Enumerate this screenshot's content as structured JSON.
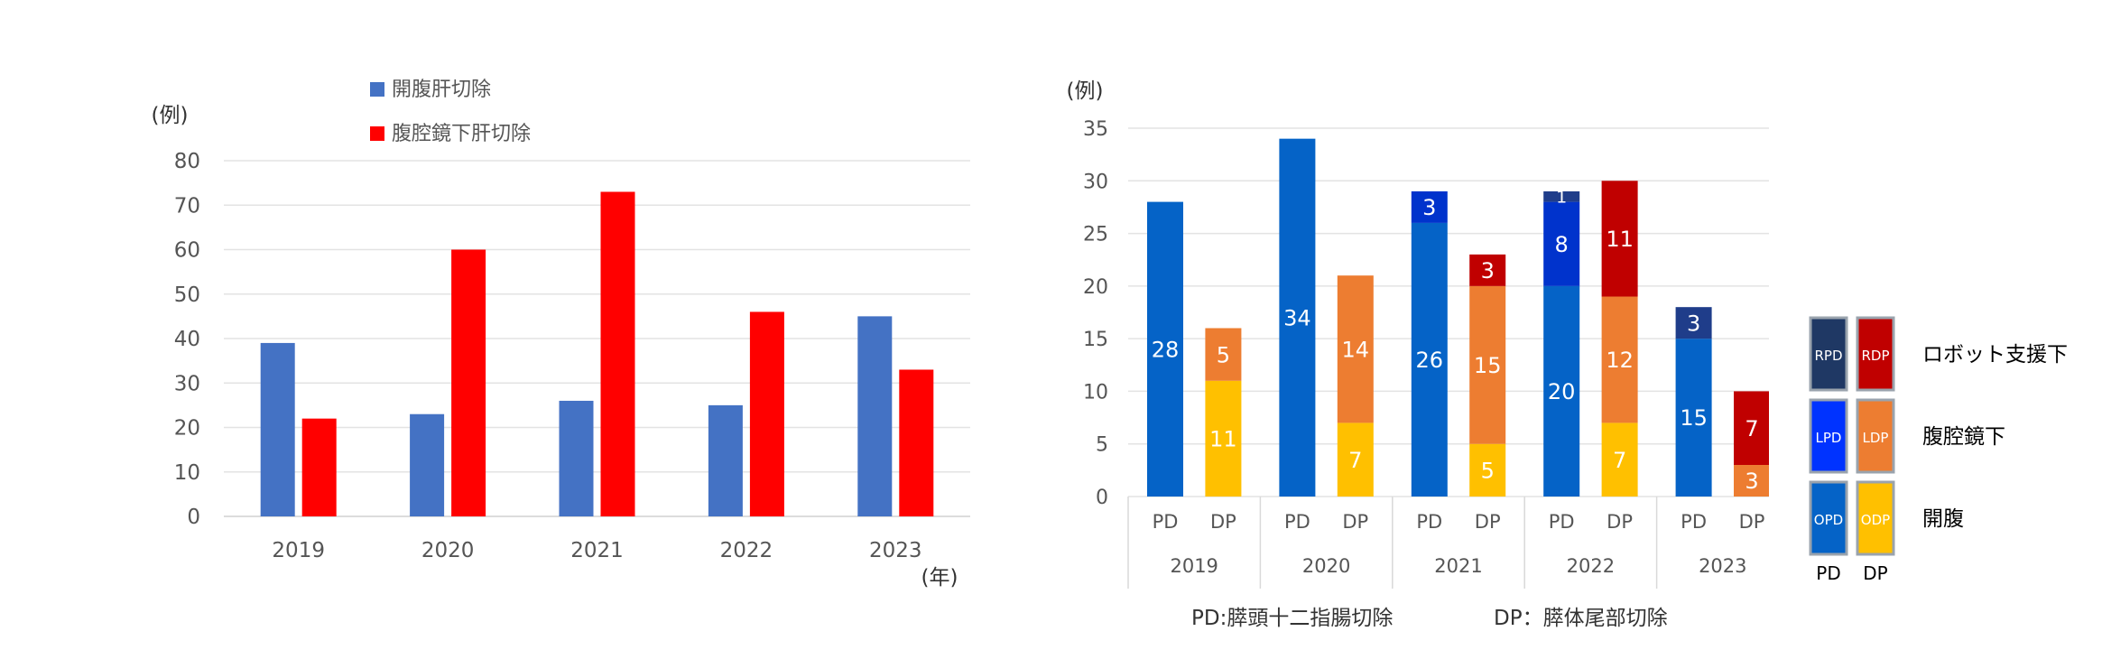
{
  "chart_data": [
    {
      "type": "bar",
      "title": "",
      "xlabel": "(年)",
      "ylabel": "(例)",
      "ylim": [
        0,
        80
      ],
      "yticks": [
        0,
        10,
        20,
        30,
        40,
        50,
        60,
        70,
        80
      ],
      "categories": [
        "2019",
        "2020",
        "2021",
        "2022",
        "2023"
      ],
      "series": [
        {
          "name": "開腹肝切除",
          "color": "#4472c4",
          "values": [
            39,
            23,
            26,
            25,
            45
          ]
        },
        {
          "name": "腹腔鏡下肝切除",
          "color": "#ff0000",
          "values": [
            22,
            60,
            73,
            46,
            33
          ]
        }
      ],
      "grid": true,
      "legend": "top"
    },
    {
      "type": "bar",
      "stacked": true,
      "title": "",
      "ylabel": "(例)",
      "ylim": [
        0,
        35
      ],
      "yticks": [
        0,
        5,
        10,
        15,
        20,
        25,
        30,
        35
      ],
      "categories": [
        "2019",
        "2020",
        "2021",
        "2022",
        "2023"
      ],
      "subcategories": [
        "PD",
        "DP"
      ],
      "footnote_pd": "PD:膵頭十二指腸切除",
      "footnote_dp": "DP：膵体尾部切除",
      "stack_layers": [
        "開腹",
        "腹腔鏡下",
        "ロボット支援下"
      ],
      "bars": [
        {
          "year": "2019",
          "type": "PD",
          "segments": [
            {
              "layer": "開腹",
              "value": 28,
              "color": "#0563c7"
            }
          ]
        },
        {
          "year": "2019",
          "type": "DP",
          "segments": [
            {
              "layer": "開腹",
              "value": 11,
              "color": "#ffc000"
            },
            {
              "layer": "腹腔鏡下",
              "value": 5,
              "color": "#ed7d31"
            }
          ]
        },
        {
          "year": "2020",
          "type": "PD",
          "segments": [
            {
              "layer": "開腹",
              "value": 34,
              "color": "#0563c7"
            }
          ]
        },
        {
          "year": "2020",
          "type": "DP",
          "segments": [
            {
              "layer": "開腹",
              "value": 7,
              "color": "#ffc000"
            },
            {
              "layer": "腹腔鏡下",
              "value": 14,
              "color": "#ed7d31"
            }
          ]
        },
        {
          "year": "2021",
          "type": "PD",
          "segments": [
            {
              "layer": "開腹",
              "value": 26,
              "color": "#0563c7"
            },
            {
              "layer": "腹腔鏡下",
              "value": 3,
              "color": "#0033cc"
            }
          ]
        },
        {
          "year": "2021",
          "type": "DP",
          "segments": [
            {
              "layer": "開腹",
              "value": 5,
              "color": "#ffc000"
            },
            {
              "layer": "腹腔鏡下",
              "value": 15,
              "color": "#ed7d31"
            },
            {
              "layer": "ロボット支援下",
              "value": 3,
              "color": "#c00000"
            }
          ]
        },
        {
          "year": "2022",
          "type": "PD",
          "segments": [
            {
              "layer": "開腹",
              "value": 20,
              "color": "#0563c7"
            },
            {
              "layer": "腹腔鏡下",
              "value": 8,
              "color": "#0033cc"
            },
            {
              "layer": "ロボット支援下",
              "value": 1,
              "color": "#1f3d8a"
            }
          ]
        },
        {
          "year": "2022",
          "type": "DP",
          "segments": [
            {
              "layer": "開腹",
              "value": 7,
              "color": "#ffc000"
            },
            {
              "layer": "腹腔鏡下",
              "value": 12,
              "color": "#ed7d31"
            },
            {
              "layer": "ロボット支援下",
              "value": 11,
              "color": "#c00000"
            }
          ]
        },
        {
          "year": "2023",
          "type": "PD",
          "segments": [
            {
              "layer": "開腹",
              "value": 15,
              "color": "#0563c7"
            },
            {
              "layer": "ロボット支援下",
              "value": 3,
              "color": "#1f3d8a"
            }
          ]
        },
        {
          "year": "2023",
          "type": "DP",
          "segments": [
            {
              "layer": "腹腔鏡下",
              "value": 3,
              "color": "#ed7d31"
            },
            {
              "layer": "ロボット支援下",
              "value": 7,
              "color": "#c00000"
            }
          ]
        }
      ],
      "grid": true,
      "legend": "right"
    }
  ],
  "legend_panel": {
    "rows": [
      {
        "label": "ロボット支援下",
        "pd_code": "RPD",
        "pd_color": "#1f3864",
        "dp_code": "RDP",
        "dp_color": "#c00000"
      },
      {
        "label": "腹腔鏡下",
        "pd_code": "LPD",
        "pd_color": "#0033ff",
        "dp_code": "LDP",
        "dp_color": "#ed7d31"
      },
      {
        "label": "開腹",
        "pd_code": "OPD",
        "pd_color": "#0563c7",
        "dp_code": "ODP",
        "dp_color": "#ffc000"
      }
    ],
    "col_pd": "PD",
    "col_dp": "DP"
  }
}
